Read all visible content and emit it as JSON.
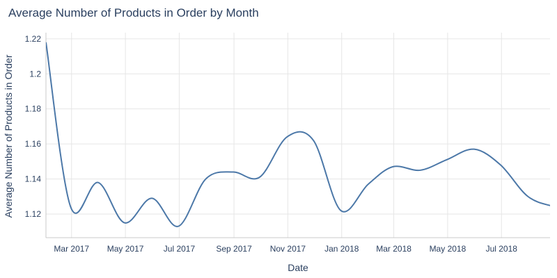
{
  "chart_data": {
    "type": "line",
    "title": "Average Number of Products in Order by Month",
    "xlabel": "Date",
    "ylabel": "Average Number of Products in Order",
    "x": [
      "2017-01-31",
      "2017-02-28",
      "2017-03-31",
      "2017-04-30",
      "2017-05-31",
      "2017-06-30",
      "2017-07-31",
      "2017-08-31",
      "2017-09-30",
      "2017-10-31",
      "2017-11-30",
      "2017-12-31",
      "2018-01-31",
      "2018-02-28",
      "2018-03-31",
      "2018-04-30",
      "2018-05-31",
      "2018-06-30",
      "2018-07-31",
      "2018-08-31",
      "2018-09-30"
    ],
    "values": [
      1.218,
      1.124,
      1.138,
      1.115,
      1.129,
      1.113,
      1.14,
      1.144,
      1.141,
      1.164,
      1.162,
      1.122,
      1.137,
      1.147,
      1.145,
      1.151,
      1.157,
      1.148,
      1.13,
      1.124,
      1.12
    ],
    "x_ticks": [
      {
        "date": "2017-03-01",
        "label": "Mar 2017"
      },
      {
        "date": "2017-05-01",
        "label": "May 2017"
      },
      {
        "date": "2017-07-01",
        "label": "Jul 2017"
      },
      {
        "date": "2017-09-01",
        "label": "Sep 2017"
      },
      {
        "date": "2017-11-01",
        "label": "Nov 2017"
      },
      {
        "date": "2018-01-01",
        "label": "Jan 2018"
      },
      {
        "date": "2018-03-01",
        "label": "Mar 2018"
      },
      {
        "date": "2018-05-01",
        "label": "May 2018"
      },
      {
        "date": "2018-07-01",
        "label": "Jul 2018"
      }
    ],
    "y_ticks": [
      {
        "value": 1.12,
        "label": "1.12"
      },
      {
        "value": 1.14,
        "label": "1.14"
      },
      {
        "value": 1.16,
        "label": "1.16"
      },
      {
        "value": 1.18,
        "label": "1.18"
      },
      {
        "value": 1.2,
        "label": "1.2"
      },
      {
        "value": 1.22,
        "label": "1.22"
      }
    ],
    "xlim": [
      "2017-01-31",
      "2018-08-25"
    ],
    "ylim": [
      1.1065,
      1.2235
    ],
    "grid": true,
    "legend": "none",
    "line_shape": "spline",
    "colors": {
      "line": "#4c78a8"
    }
  }
}
